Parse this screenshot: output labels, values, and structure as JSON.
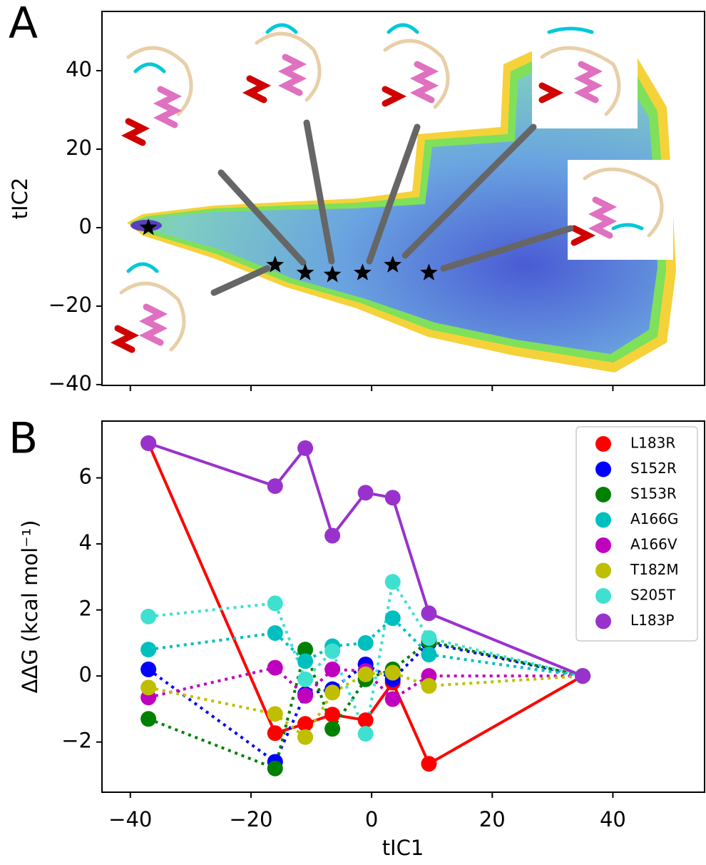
{
  "chart_data": [
    {
      "type": "scatter",
      "panel_label": "A",
      "ylabel": "tIC2",
      "x": [
        -37,
        -16,
        -11,
        -6.5,
        -1.5,
        3.5,
        9.5
      ],
      "values": [
        0,
        -9.5,
        -11.5,
        -12,
        -11.5,
        -9.5,
        -11.5
      ],
      "marker": "star",
      "color": "#000000",
      "xlim": [
        -44.7,
        55.2
      ],
      "ylim": [
        -40.2,
        55.1
      ],
      "xticks": [
        -40,
        -20,
        0,
        20,
        40
      ],
      "show_xtick_labels": false,
      "yticks": [
        -40,
        -20,
        0,
        20,
        40
      ]
    },
    {
      "type": "line",
      "panel_label": "B",
      "xlabel": "tIC1",
      "ylabel": "ΔΔG (kcal mol⁻¹)",
      "x": [
        -37,
        -16,
        -11,
        -6.5,
        -1,
        3.5,
        9.5,
        35
      ],
      "series": [
        {
          "name": "L183R",
          "color": "#ff0000",
          "linestyle": "solid",
          "values": [
            7.05,
            -1.73,
            -1.45,
            -1.17,
            -1.34,
            -0.2,
            -2.66,
            0
          ]
        },
        {
          "name": "S152R",
          "color": "#0000ff",
          "linestyle": "dotted",
          "values": [
            0.2,
            -2.6,
            -0.55,
            -0.4,
            0.35,
            -0.1,
            1.0,
            0
          ]
        },
        {
          "name": "S153R",
          "color": "#008000",
          "linestyle": "dotted",
          "values": [
            -1.3,
            -2.8,
            0.8,
            -1.6,
            -0.1,
            0.2,
            1.05,
            0
          ]
        },
        {
          "name": "A166G",
          "color": "#00bfbf",
          "linestyle": "dotted",
          "values": [
            0.8,
            1.3,
            0.45,
            0.9,
            1.0,
            1.75,
            0.65,
            0
          ]
        },
        {
          "name": "A166V",
          "color": "#bf00bf",
          "linestyle": "dotted",
          "values": [
            -0.65,
            0.25,
            -0.6,
            0.2,
            0.15,
            -0.7,
            0.0,
            0
          ]
        },
        {
          "name": "T182M",
          "color": "#bfbf00",
          "linestyle": "dotted",
          "values": [
            -0.35,
            -1.15,
            -1.85,
            -0.5,
            0.05,
            0.1,
            -0.3,
            0
          ]
        },
        {
          "name": "S205T",
          "color": "#40e0d0",
          "linestyle": "dotted",
          "values": [
            1.8,
            2.2,
            -0.1,
            0.75,
            -1.75,
            2.85,
            1.15,
            0
          ]
        },
        {
          "name": "L183P",
          "color": "#9932cc",
          "linestyle": "solid",
          "values": [
            7.05,
            5.75,
            6.9,
            4.25,
            5.55,
            5.4,
            1.9,
            0
          ]
        }
      ],
      "xlim": [
        -44.7,
        55.2
      ],
      "ylim": [
        -3.52,
        7.72
      ],
      "xticks": [
        -40,
        -20,
        0,
        20,
        40
      ],
      "yticks": [
        -2,
        0,
        2,
        4,
        6
      ],
      "legend": "upper right"
    }
  ]
}
